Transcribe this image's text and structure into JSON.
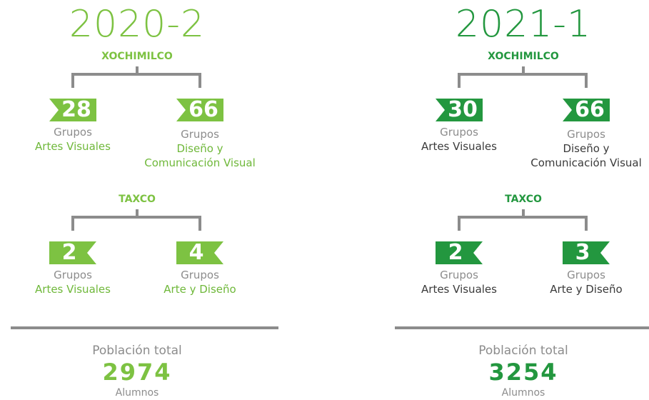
{
  "panels": [
    {
      "period": "2020-2",
      "color": "#7dc242",
      "program_color": "#6fb83a",
      "campuses": [
        {
          "name": "XOCHIMILCO",
          "items": [
            {
              "count": 28,
              "unit": "Grupos",
              "program_lines": [
                "Artes Visuales"
              ]
            },
            {
              "count": 66,
              "unit": "Grupos",
              "program_lines": [
                "Diseño y",
                "Comunicación Visual"
              ]
            }
          ]
        },
        {
          "name": "TAXCO",
          "items": [
            {
              "count": 2,
              "unit": "Grupos",
              "program_lines": [
                "Artes Visuales"
              ]
            },
            {
              "count": 4,
              "unit": "Grupos",
              "program_lines": [
                "Arte y Diseño"
              ]
            }
          ]
        }
      ],
      "total_label": "Población total",
      "total": 2974,
      "total_unit": "Alumnos"
    },
    {
      "period": "2021-1",
      "color": "#23973f",
      "program_color": "#3a3a3a",
      "campuses": [
        {
          "name": "XOCHIMILCO",
          "items": [
            {
              "count": 30,
              "unit": "Grupos",
              "program_lines": [
                "Artes Visuales"
              ]
            },
            {
              "count": 66,
              "unit": "Grupos",
              "program_lines": [
                "Diseño y",
                "Comunicación Visual"
              ]
            }
          ]
        },
        {
          "name": "TAXCO",
          "items": [
            {
              "count": 2,
              "unit": "Grupos",
              "program_lines": [
                "Artes Visuales"
              ]
            },
            {
              "count": 3,
              "unit": "Grupos",
              "program_lines": [
                "Arte y Diseño"
              ]
            }
          ]
        }
      ],
      "total_label": "Población total",
      "total": 3254,
      "total_unit": "Alumnos"
    }
  ]
}
